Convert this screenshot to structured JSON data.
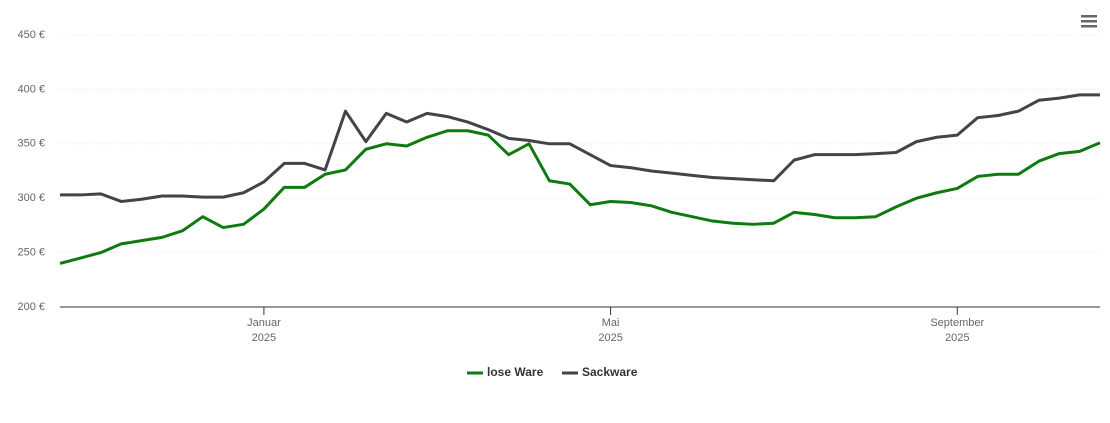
{
  "chart_data": {
    "type": "line",
    "categories": [
      null,
      null,
      null,
      null,
      null,
      null,
      null,
      null,
      null,
      null,
      "Januar 2025",
      null,
      null,
      null,
      null,
      null,
      null,
      null,
      null,
      null,
      null,
      null,
      null,
      null,
      null,
      null,
      null,
      "Mai 2025",
      null,
      null,
      null,
      null,
      null,
      null,
      null,
      null,
      null,
      null,
      null,
      null,
      null,
      null,
      null,
      null,
      "September 2025",
      null,
      null,
      null,
      null,
      null,
      null,
      null
    ],
    "series": [
      {
        "name": "lose Ware",
        "color": "#0f7a0f",
        "values": [
          240,
          245,
          250,
          258,
          261,
          264,
          270,
          283,
          273,
          276,
          290,
          310,
          310,
          322,
          326,
          345,
          350,
          348,
          356,
          362,
          362,
          358,
          340,
          350,
          316,
          313,
          294,
          297,
          296,
          293,
          287,
          283,
          279,
          277,
          276,
          277,
          287,
          285,
          282,
          282,
          283,
          292,
          300,
          305,
          309,
          320,
          322,
          322,
          334,
          341,
          343,
          351
        ]
      },
      {
        "name": "Sackware",
        "color": "#434348",
        "values": [
          303,
          303,
          304,
          297,
          299,
          302,
          302,
          301,
          301,
          305,
          315,
          332,
          332,
          326,
          380,
          352,
          378,
          370,
          378,
          375,
          370,
          363,
          355,
          353,
          350,
          350,
          340,
          330,
          328,
          325,
          323,
          321,
          319,
          318,
          317,
          316,
          335,
          340,
          340,
          340,
          341,
          342,
          352,
          356,
          358,
          374,
          376,
          380,
          390,
          392,
          395,
          395
        ]
      }
    ],
    "ylim": [
      200,
      450
    ],
    "yticks": [
      {
        "value": 200,
        "label": "200 €"
      },
      {
        "value": 250,
        "label": "250 €"
      },
      {
        "value": 300,
        "label": "300 €"
      },
      {
        "value": 350,
        "label": "350 €"
      },
      {
        "value": 400,
        "label": "400 €"
      },
      {
        "value": 450,
        "label": "450 €"
      }
    ],
    "grid": true,
    "legend": "bottom"
  }
}
